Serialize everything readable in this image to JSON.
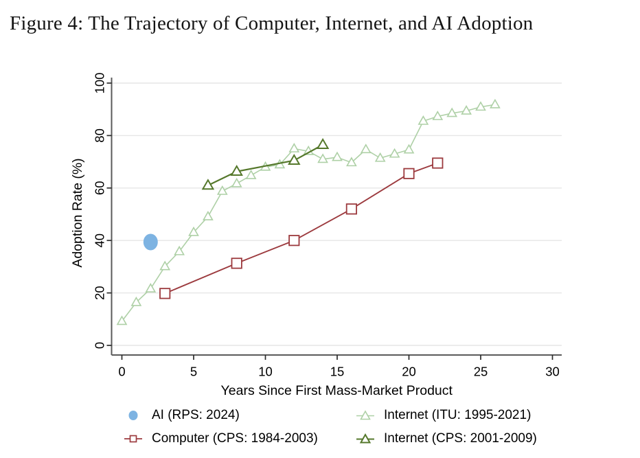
{
  "figure": {
    "title": "Figure 4: The Trajectory of Computer, Internet, and AI Adoption"
  },
  "chart_data": {
    "type": "line",
    "title": "",
    "xlabel": "Years Since First Mass-Market Product",
    "ylabel": "Adoption Rate  (%)",
    "xlim": [
      0,
      30
    ],
    "ylim": [
      0,
      100
    ],
    "xticks": [
      0,
      5,
      10,
      15,
      20,
      25,
      30
    ],
    "yticks": [
      0,
      20,
      40,
      60,
      80,
      100
    ],
    "grid": "horizontal",
    "legend_position": "below-chart, 2x2 grid",
    "colors": {
      "internet_itu": "#aed0a6",
      "internet_cps": "#55782b",
      "computer": "#9c3a3e",
      "ai": "#7db3e2",
      "gridline": "#e6e6e6",
      "axis": "#5a5a5a",
      "tick": "#2b2b2b",
      "text": "#000000"
    },
    "series": [
      {
        "id": "internet_itu",
        "name": "Internet (ITU: 1995-2021)",
        "draw": "line+marker",
        "marker": "triangle-hollow",
        "color": "#aed0a6",
        "line_width": 1.6,
        "points": [
          [
            0,
            9.2
          ],
          [
            1,
            16.4
          ],
          [
            2,
            21.6
          ],
          [
            3,
            30.1
          ],
          [
            4,
            35.8
          ],
          [
            5,
            43.1
          ],
          [
            6,
            49.1
          ],
          [
            7,
            58.8
          ],
          [
            8,
            61.7
          ],
          [
            9,
            64.8
          ],
          [
            10,
            68.0
          ],
          [
            11,
            68.9
          ],
          [
            12,
            75.0
          ],
          [
            13,
            74.0
          ],
          [
            14,
            71.0
          ],
          [
            15,
            71.7
          ],
          [
            16,
            69.7
          ],
          [
            17,
            74.7
          ],
          [
            18,
            71.4
          ],
          [
            19,
            73.0
          ],
          [
            20,
            74.6
          ],
          [
            21,
            85.5
          ],
          [
            22,
            87.3
          ],
          [
            23,
            88.5
          ],
          [
            24,
            89.4
          ],
          [
            25,
            90.9
          ],
          [
            26,
            91.8
          ]
        ]
      },
      {
        "id": "internet_cps",
        "name": "Internet (CPS: 2001-2009)",
        "draw": "line+marker",
        "marker": "triangle-hollow",
        "color": "#55782b",
        "line_width": 2.2,
        "points": [
          [
            6,
            61.0
          ],
          [
            8,
            66.3
          ],
          [
            12,
            70.5
          ],
          [
            14,
            76.5
          ]
        ]
      },
      {
        "id": "computer",
        "name": "Computer (CPS: 1984-2003)",
        "draw": "line+marker",
        "marker": "square-hollow",
        "color": "#9c3a3e",
        "line_width": 1.9,
        "points": [
          [
            3,
            19.8
          ],
          [
            8,
            31.3
          ],
          [
            12,
            40.0
          ],
          [
            16,
            52.0
          ],
          [
            20,
            65.5
          ],
          [
            22,
            69.5
          ]
        ]
      },
      {
        "id": "ai",
        "name": "AI (RPS: 2024)",
        "draw": "marker",
        "marker": "circle-filled",
        "color": "#7db3e2",
        "line_width": 0,
        "points": [
          [
            2,
            39.4
          ]
        ]
      }
    ]
  }
}
